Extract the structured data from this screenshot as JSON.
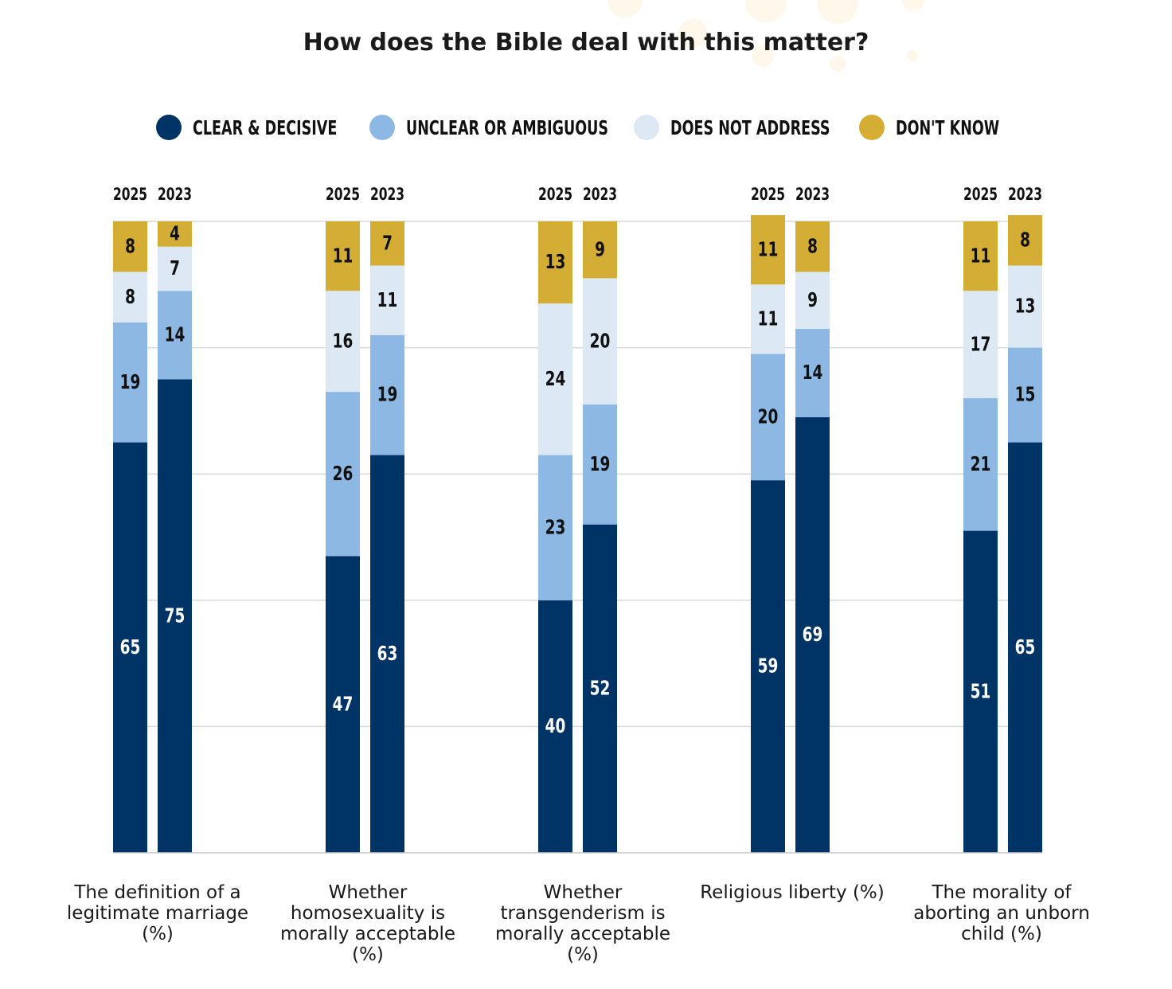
{
  "chart_data": {
    "type": "bar",
    "stacked": true,
    "title": "How does the Bible deal with this matter?",
    "legend_position": "top",
    "grid": true,
    "ylim": [
      0,
      100
    ],
    "legend": [
      {
        "key": "clear",
        "label": "CLEAR & DECISIVE",
        "color": "#003366"
      },
      {
        "key": "unclear",
        "label": "UNCLEAR OR AMBIGUOUS",
        "color": "#8db8e4"
      },
      {
        "key": "notaddress",
        "label": "DOES NOT ADDRESS",
        "color": "#dce8f4"
      },
      {
        "key": "dontknow",
        "label": "DON'T KNOW",
        "color": "#d4ae34"
      }
    ],
    "years": [
      "2025",
      "2023"
    ],
    "categories": [
      {
        "label": "The definition of a legitimate marriage (%)",
        "bars": [
          {
            "year": "2025",
            "clear": 65,
            "unclear": 19,
            "notaddress": 8,
            "dontknow": 8
          },
          {
            "year": "2023",
            "clear": 75,
            "unclear": 14,
            "notaddress": 7,
            "dontknow": 4
          }
        ]
      },
      {
        "label": "Whether homosexuality is morally acceptable (%)",
        "bars": [
          {
            "year": "2025",
            "clear": 47,
            "unclear": 26,
            "notaddress": 16,
            "dontknow": 11
          },
          {
            "year": "2023",
            "clear": 63,
            "unclear": 19,
            "notaddress": 11,
            "dontknow": 7
          }
        ]
      },
      {
        "label": "Whether transgenderism is morally acceptable (%)",
        "bars": [
          {
            "year": "2025",
            "clear": 40,
            "unclear": 23,
            "notaddress": 24,
            "dontknow": 13
          },
          {
            "year": "2023",
            "clear": 52,
            "unclear": 19,
            "notaddress": 20,
            "dontknow": 9
          }
        ]
      },
      {
        "label": "Religious liberty (%)",
        "bars": [
          {
            "year": "2025",
            "clear": 59,
            "unclear": 20,
            "notaddress": 11,
            "dontknow": 11
          },
          {
            "year": "2023",
            "clear": 69,
            "unclear": 14,
            "notaddress": 9,
            "dontknow": 8
          }
        ]
      },
      {
        "label": "The morality of aborting an unborn child (%)",
        "bars": [
          {
            "year": "2025",
            "clear": 51,
            "unclear": 21,
            "notaddress": 17,
            "dontknow": 11
          },
          {
            "year": "2023",
            "clear": 65,
            "unclear": 15,
            "notaddress": 13,
            "dontknow": 8
          }
        ]
      }
    ]
  }
}
